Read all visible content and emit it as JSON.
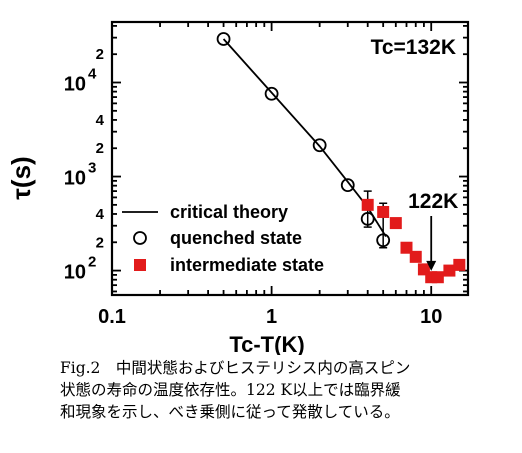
{
  "chart_data": {
    "type": "scatter",
    "xlabel": "Tc-T(K)",
    "ylabel": "τ(s)",
    "xscale": "log",
    "yscale": "log",
    "xlim": [
      0.1,
      17
    ],
    "ylim": [
      55,
      44000
    ],
    "x_ticks": [
      {
        "value": 0.1,
        "label": "0.1"
      },
      {
        "value": 1,
        "label": "1"
      },
      {
        "value": 10,
        "label": "10"
      }
    ],
    "y_ticks": [
      {
        "value": 100,
        "label": "10",
        "exp": "2"
      },
      {
        "value": 1000,
        "label": "10",
        "exp": "3"
      },
      {
        "value": 10000,
        "label": "10",
        "exp": "4"
      }
    ],
    "y_minor_labels": [
      {
        "value": 200,
        "label": "2"
      },
      {
        "value": 400,
        "label": "4"
      },
      {
        "value": 2000,
        "label": "2"
      },
      {
        "value": 4000,
        "label": "4"
      },
      {
        "value": 20000,
        "label": "2"
      }
    ],
    "series": [
      {
        "name": "critical theory",
        "kind": "line",
        "color": "#000000",
        "x": [
          0.5,
          1,
          2,
          3,
          4,
          5.2
        ],
        "y": [
          29000,
          7800,
          2100,
          880,
          470,
          230
        ]
      },
      {
        "name": "quenched state",
        "kind": "open-circle",
        "color": "#000000",
        "x": [
          0.5,
          1,
          2,
          3,
          4,
          5
        ],
        "y": [
          29000,
          7600,
          2150,
          810,
          355,
          210
        ]
      },
      {
        "name": "intermediate state",
        "kind": "filled-square",
        "color": "#e21b1b",
        "x": [
          4,
          5,
          6,
          7,
          8,
          9,
          10,
          11,
          13,
          15
        ],
        "y": [
          500,
          420,
          320,
          175,
          140,
          103,
          85,
          85,
          100,
          115
        ]
      }
    ],
    "error_bars": [
      {
        "x": 4,
        "low": 290,
        "high": 700
      },
      {
        "x": 5,
        "low": 175,
        "high": 520
      }
    ],
    "annotations": [
      {
        "text": "Tc=132K",
        "position": "top-right"
      },
      {
        "text": "122K",
        "arrow_to": {
          "x": 10,
          "y": 90
        }
      }
    ],
    "legend": {
      "position": "bottom-left"
    }
  },
  "caption": {
    "lines": [
      "Fig.2　中間状態およびヒステリシス内の高スピン",
      "状態の寿命の温度依存性。122 K以上では臨界緩",
      "和現象を示し、べき乗側に従って発散している。"
    ]
  }
}
